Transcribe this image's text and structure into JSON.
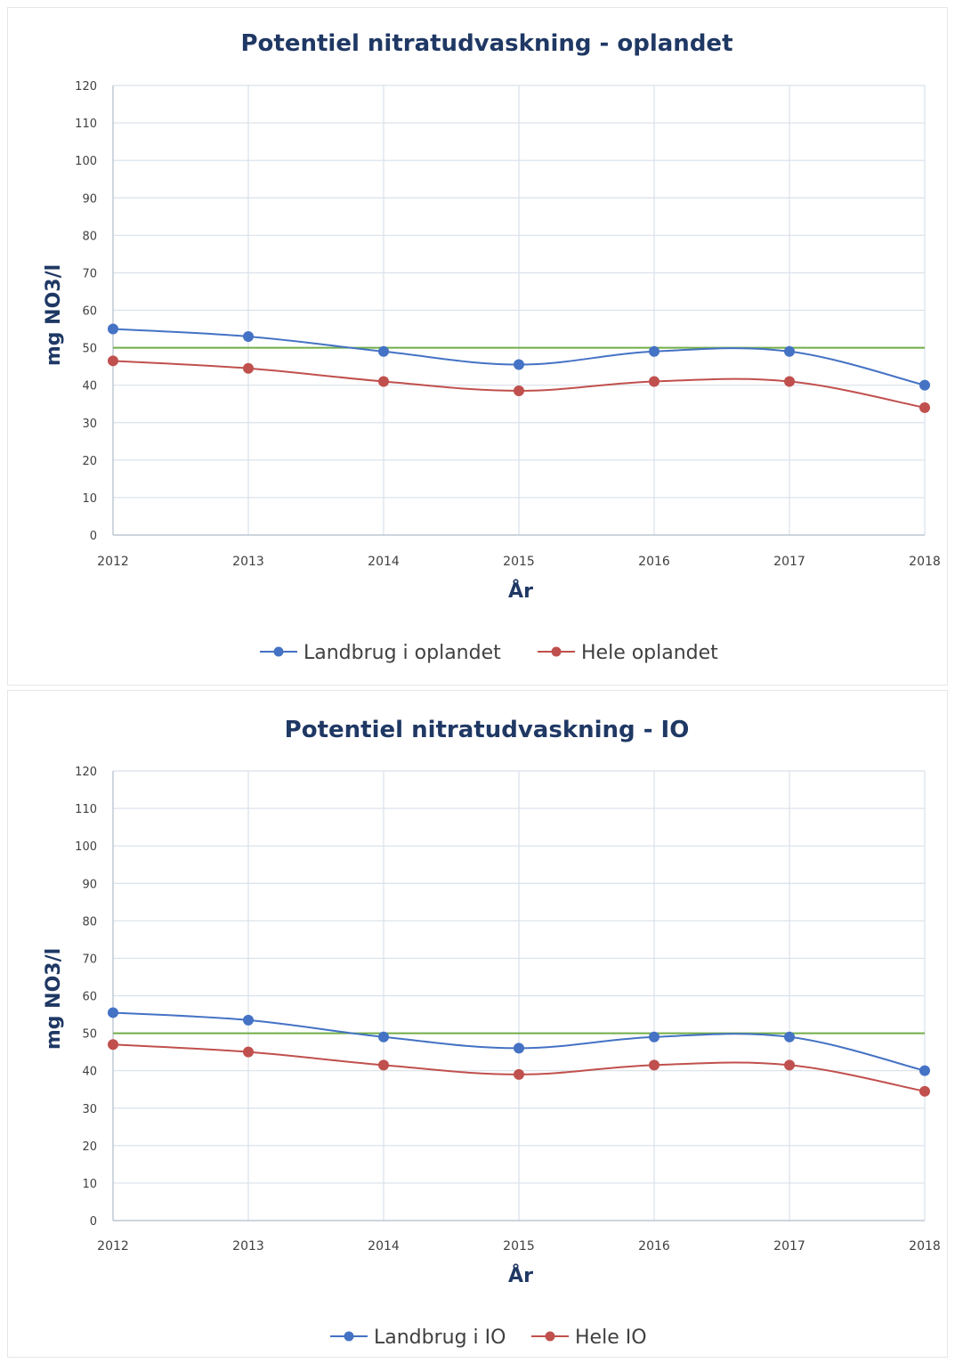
{
  "chart_data": [
    {
      "type": "line",
      "title": "Potentiel nitratudvaskning - oplandet",
      "xlabel": "År",
      "ylabel": "mg NO3/l",
      "categories": [
        "2012",
        "2013",
        "2014",
        "2015",
        "2016",
        "2017",
        "2018"
      ],
      "yticks": [
        "0",
        "10",
        "20",
        "30",
        "40",
        "50",
        "60",
        "70",
        "80",
        "90",
        "100",
        "110",
        "120"
      ],
      "ylim": [
        0,
        120
      ],
      "grid": true,
      "legend_position": "bottom",
      "reference_line": {
        "value": 50,
        "color": "#70ad47"
      },
      "series": [
        {
          "name": "Landbrug i oplandet",
          "color": "#4472c4",
          "values": [
            55,
            53,
            49,
            45.5,
            49,
            49,
            40
          ]
        },
        {
          "name": "Hele oplandet",
          "color": "#c0504d",
          "values": [
            46.5,
            44.5,
            41,
            38.5,
            41,
            41,
            34
          ]
        }
      ]
    },
    {
      "type": "line",
      "title": "Potentiel nitratudvaskning - IO",
      "xlabel": "År",
      "ylabel": "mg NO3/l",
      "categories": [
        "2012",
        "2013",
        "2014",
        "2015",
        "2016",
        "2017",
        "2018"
      ],
      "yticks": [
        "0",
        "10",
        "20",
        "30",
        "40",
        "50",
        "60",
        "70",
        "80",
        "90",
        "100",
        "110",
        "120"
      ],
      "ylim": [
        0,
        120
      ],
      "grid": true,
      "legend_position": "bottom",
      "reference_line": {
        "value": 50,
        "color": "#70ad47"
      },
      "series": [
        {
          "name": "Landbrug i IO",
          "color": "#4472c4",
          "values": [
            55.5,
            53.5,
            49,
            46,
            49,
            49,
            40
          ]
        },
        {
          "name": "Hele IO",
          "color": "#c0504d",
          "values": [
            47,
            45,
            41.5,
            39,
            41.5,
            41.5,
            34.5
          ]
        }
      ]
    }
  ]
}
